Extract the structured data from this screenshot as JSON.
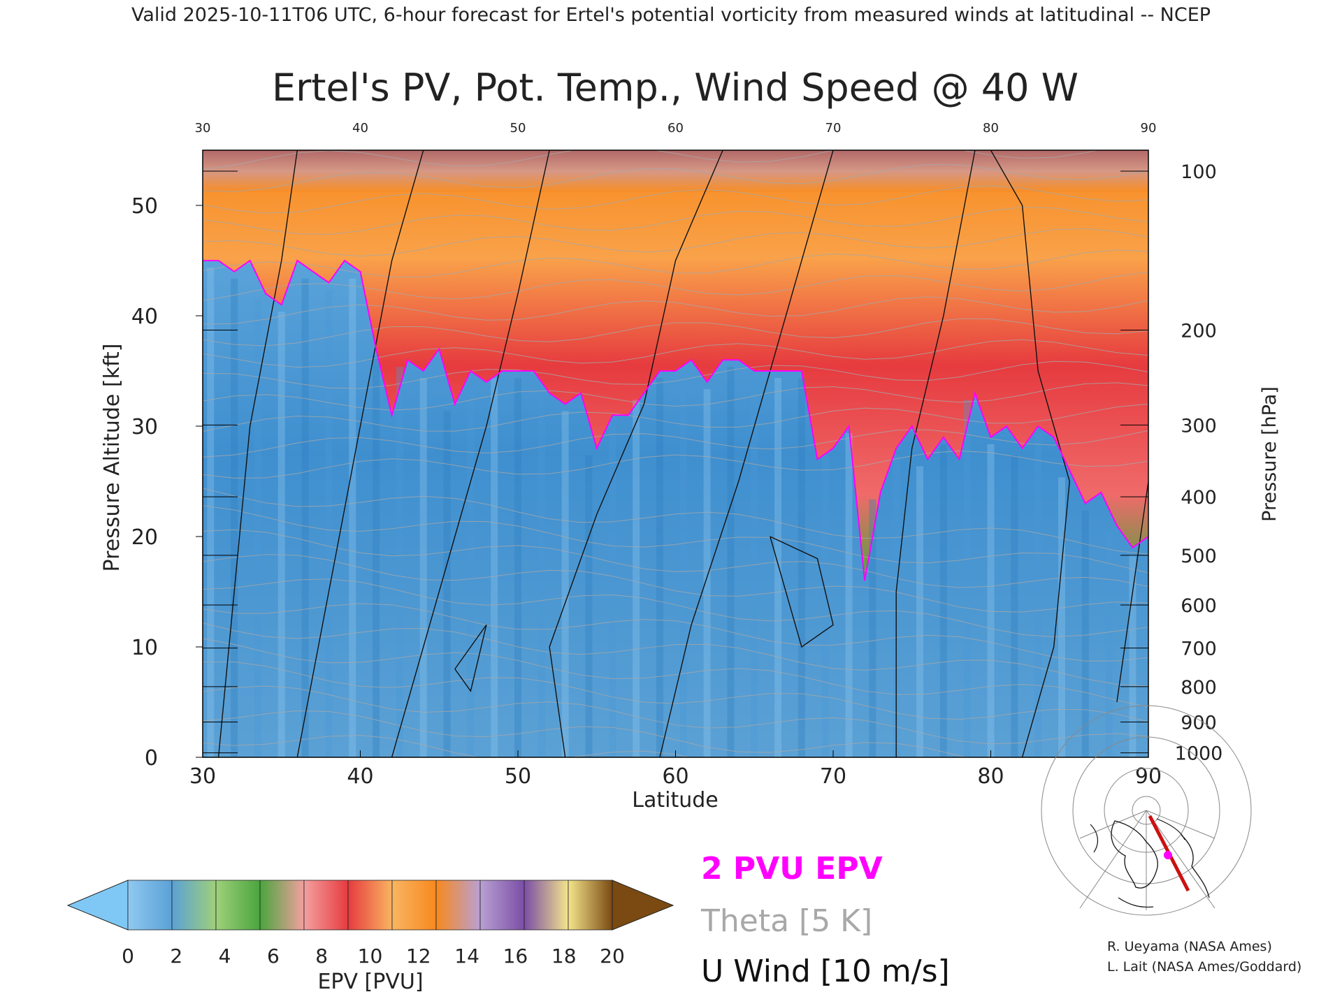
{
  "header": {
    "valid_line": "Valid 2025-10-11T06 UTC, 6-hour forecast for Ertel's potential vorticity from measured winds at latitudinal -- NCEP"
  },
  "chart_data": {
    "type": "heatmap",
    "title": "Ertel's PV, Pot. Temp., Wind Speed @ 40 W",
    "xlabel": "Latitude",
    "ylabel_left": "Pressure Altitude [kft]",
    "ylabel_right": "Pressure [hPa]",
    "xlim": [
      30,
      90
    ],
    "ylim_kft": [
      0,
      55
    ],
    "x_ticks": [
      "30",
      "40",
      "50",
      "60",
      "70",
      "80",
      "90"
    ],
    "x_ticks_top": [
      "30",
      "40",
      "50",
      "60",
      "70",
      "80",
      "90"
    ],
    "y_ticks_left": [
      "0",
      "10",
      "20",
      "30",
      "40",
      "50"
    ],
    "y_ticks_right": [
      {
        "hpa": "100",
        "kft": 53.1
      },
      {
        "hpa": "200",
        "kft": 38.7
      },
      {
        "hpa": "300",
        "kft": 30.1
      },
      {
        "hpa": "400",
        "kft": 23.6
      },
      {
        "hpa": "500",
        "kft": 18.3
      },
      {
        "hpa": "600",
        "kft": 13.8
      },
      {
        "hpa": "700",
        "kft": 9.9
      },
      {
        "hpa": "800",
        "kft": 6.4
      },
      {
        "hpa": "900",
        "kft": 3.2
      },
      {
        "hpa": "1000",
        "kft": 0.4
      }
    ],
    "tropopause_2pvu_kft": {
      "lat": [
        30,
        31,
        32,
        33,
        34,
        35,
        36,
        37,
        38,
        39,
        40,
        41,
        42,
        43,
        44,
        45,
        46,
        47,
        48,
        49,
        50,
        51,
        52,
        53,
        54,
        55,
        56,
        57,
        58,
        59,
        60,
        61,
        62,
        63,
        64,
        65,
        66,
        67,
        68,
        69,
        70,
        71,
        72,
        73,
        74,
        75,
        76,
        77,
        78,
        79,
        80,
        81,
        82,
        83,
        84,
        85,
        86,
        87,
        88,
        89,
        90
      ],
      "kft": [
        45,
        45,
        44,
        45,
        42,
        41,
        45,
        44,
        43,
        45,
        44,
        37,
        31,
        36,
        35,
        37,
        32,
        35,
        34,
        35,
        35,
        35,
        33,
        32,
        33,
        28,
        31,
        31,
        33,
        35,
        35,
        36,
        34,
        36,
        36,
        35,
        35,
        35,
        35,
        27,
        28,
        30,
        16,
        24,
        28,
        30,
        27,
        29,
        27,
        33,
        29,
        30,
        28,
        30,
        29,
        26,
        23,
        24,
        21,
        19,
        20
      ]
    },
    "colorbar": {
      "label": "EPV [PVU]",
      "ticks": [
        "0",
        "2",
        "4",
        "6",
        "8",
        "10",
        "12",
        "14",
        "16",
        "18",
        "20"
      ],
      "colors": [
        "#8fc9f1",
        "#5ba1d5",
        "#9fd07a",
        "#4aa53d",
        "#f3a0a0",
        "#e63b3f",
        "#f9b562",
        "#f7891e",
        "#b9a0d3",
        "#7a4ea6",
        "#f4e48c",
        "#7a4a12"
      ],
      "under_color": "#7fc8f5",
      "over_color": "#7a4a12"
    },
    "legend": [
      {
        "label": "2 PVU EPV",
        "color": "#ff00ff"
      },
      {
        "label": "Theta [5 K]",
        "color": "#a8a8a8"
      },
      {
        "label": "U Wind [10 m/s]",
        "color": "#111111"
      }
    ]
  },
  "credits": {
    "line1": "R. Ueyama (NASA Ames)",
    "line2": "L. Lait (NASA Ames/Goddard)"
  },
  "inset_map": {
    "icon": "north-polar-map-icon",
    "track_color": "#cc1111",
    "marker_color": "#ff00ff"
  }
}
